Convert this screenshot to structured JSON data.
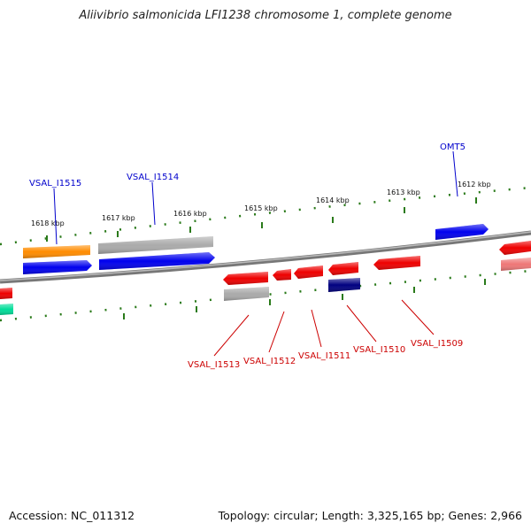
{
  "title": "Aliivibrio salmonicida LFI1238 chromosome 1, complete genome",
  "footer": {
    "accession": "Accession: NC_011312",
    "summary": "Topology: circular; Length: 3,325,165 bp; Genes: 2,966"
  },
  "ticks": [
    {
      "label": "1618 kbp"
    },
    {
      "label": "1617 kbp"
    },
    {
      "label": "1616 kbp"
    },
    {
      "label": "1615 kbp"
    },
    {
      "label": "1614 kbp"
    },
    {
      "label": "1613 kbp"
    },
    {
      "label": "1612 kbp"
    }
  ],
  "genes": [
    {
      "label": "VSAL_I1515",
      "strand": "forward",
      "color": "#0000ee"
    },
    {
      "label": "VSAL_I1514",
      "strand": "forward",
      "color": "#0000ee"
    },
    {
      "label": "OMT5",
      "strand": "forward",
      "color": "#0000ee"
    },
    {
      "label": "VSAL_I1513",
      "strand": "reverse",
      "color": "#ee0000"
    },
    {
      "label": "VSAL_I1512",
      "strand": "reverse",
      "color": "#ee0000"
    },
    {
      "label": "VSAL_I1511",
      "strand": "reverse",
      "color": "#ee0000"
    },
    {
      "label": "VSAL_I1510",
      "strand": "reverse",
      "color": "#ee0000"
    },
    {
      "label": "VSAL_I1509",
      "strand": "reverse",
      "color": "#ee0000"
    }
  ],
  "colors": {
    "backbone": "#777777",
    "tick": "#2a7a1a",
    "forward_label": "#0000cc",
    "reverse_label": "#cc0000",
    "orange": "#ff8c00",
    "grey": "#aaaaaa",
    "blue": "#0000ee",
    "navy": "#000080",
    "red": "#ee0000",
    "pink": "#ee7777",
    "teal": "#00dd99"
  }
}
